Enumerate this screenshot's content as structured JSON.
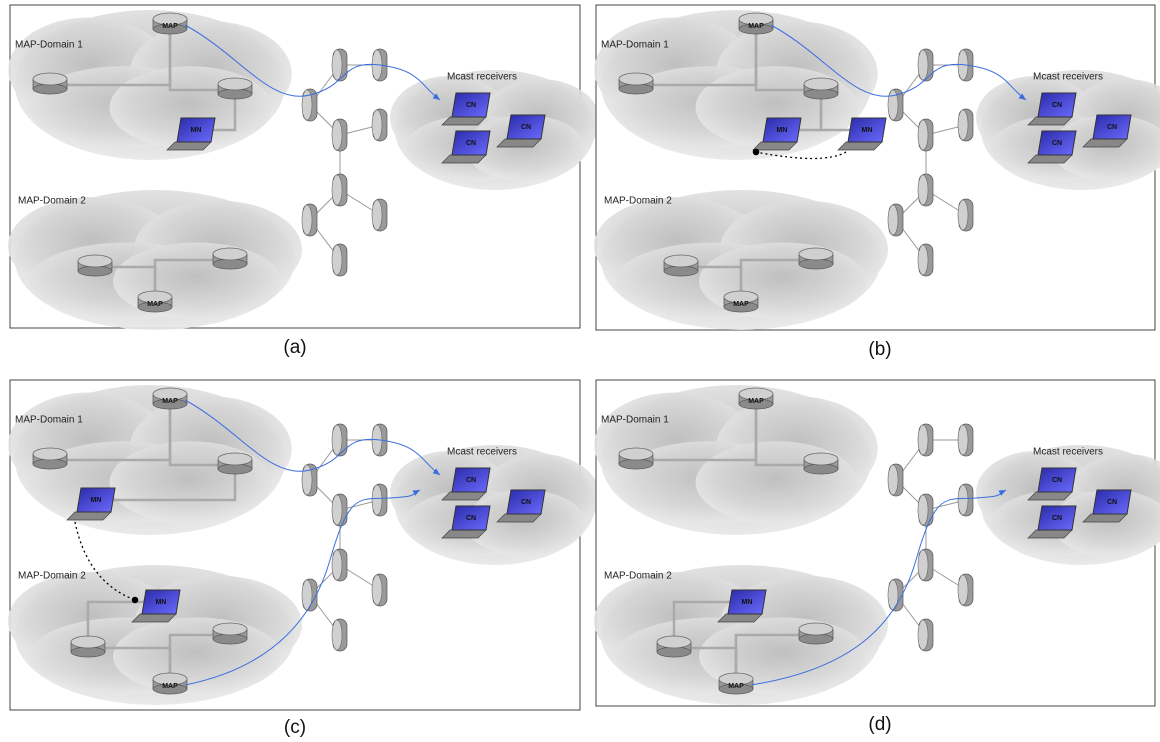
{
  "panels": [
    {
      "caption": "(a)",
      "domain1": "MAP-Domain 1",
      "domain2": "MAP-Domain 2",
      "receivers": "Mcast receivers",
      "map_labels": [
        "MAP",
        "MAP"
      ],
      "mn_labels": [
        "MN"
      ],
      "cn_labels": [
        "CN",
        "CN",
        "CN"
      ]
    },
    {
      "caption": "(b)",
      "domain1": "MAP-Domain 1",
      "domain2": "MAP-Domain 2",
      "receivers": "Mcast receivers",
      "map_labels": [
        "MAP",
        "MAP"
      ],
      "mn_labels": [
        "MN",
        "MN"
      ],
      "cn_labels": [
        "CN",
        "CN",
        "CN"
      ]
    },
    {
      "caption": "(c)",
      "domain1": "MAP-Domain 1",
      "domain2": "MAP-Domain 2",
      "receivers": "Mcast receivers",
      "map_labels": [
        "MAP",
        "MAP"
      ],
      "mn_labels": [
        "MN",
        "MN"
      ],
      "cn_labels": [
        "CN",
        "CN",
        "CN"
      ]
    },
    {
      "caption": "(d)",
      "domain1": "MAP-Domain 1",
      "domain2": "MAP-Domain 2",
      "receivers": "Mcast receivers",
      "map_labels": [
        "MAP",
        "MAP"
      ],
      "mn_labels": [
        "MN"
      ],
      "cn_labels": [
        "CN",
        "CN",
        "CN"
      ]
    }
  ]
}
